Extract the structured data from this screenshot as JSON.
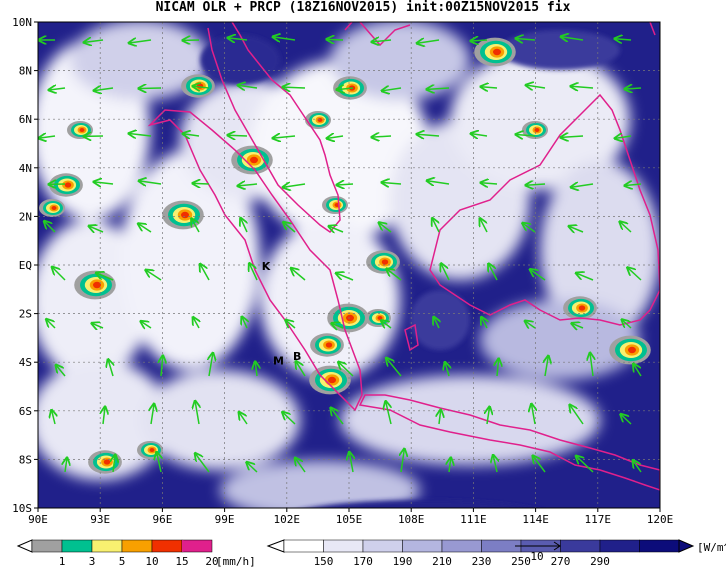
{
  "title": "NICAM OLR + PRCP (18Z16NOV2015) init:00Z15NOV2015 fix",
  "map": {
    "lon_range": [
      90,
      120
    ],
    "lat_range": [
      -10,
      10
    ],
    "x_ticks": [
      "90E",
      "93E",
      "96E",
      "99E",
      "102E",
      "105E",
      "108E",
      "111E",
      "114E",
      "117E",
      "120E"
    ],
    "y_ticks": [
      "10N",
      "8N",
      "6N",
      "4N",
      "2N",
      "EQ",
      "2S",
      "4S",
      "6S",
      "8S",
      "10S"
    ],
    "grid": "dotted",
    "coastline_color": "#e0208c",
    "vector_color": "#22cc22",
    "markers": [
      {
        "label": "K",
        "lon": 101.0,
        "lat": -0.2
      },
      {
        "label": "M",
        "lon": 101.6,
        "lat": -4.1
      },
      {
        "label": "B",
        "lon": 102.5,
        "lat": -3.9
      }
    ]
  },
  "precip_colorbar": {
    "unit": "[mm/h]",
    "labels": [
      "1",
      "3",
      "5",
      "10",
      "15",
      "20"
    ],
    "colors": [
      "#a0a0a0",
      "#00c090",
      "#f8f070",
      "#f8a000",
      "#f03000",
      "#e0208c"
    ]
  },
  "olr_colorbar": {
    "unit": "[W/m^2]",
    "labels": [
      "150",
      "170",
      "190",
      "210",
      "230",
      "250",
      "270",
      "290"
    ],
    "colors": [
      "#ffffff",
      "#e8e8f6",
      "#cfd0ec",
      "#b4b6e0",
      "#9899d2",
      "#7c7ec4",
      "#5a5cb0",
      "#3a3a9c",
      "#20208a",
      "#0c0c7a"
    ],
    "ref_vector": "10"
  }
}
